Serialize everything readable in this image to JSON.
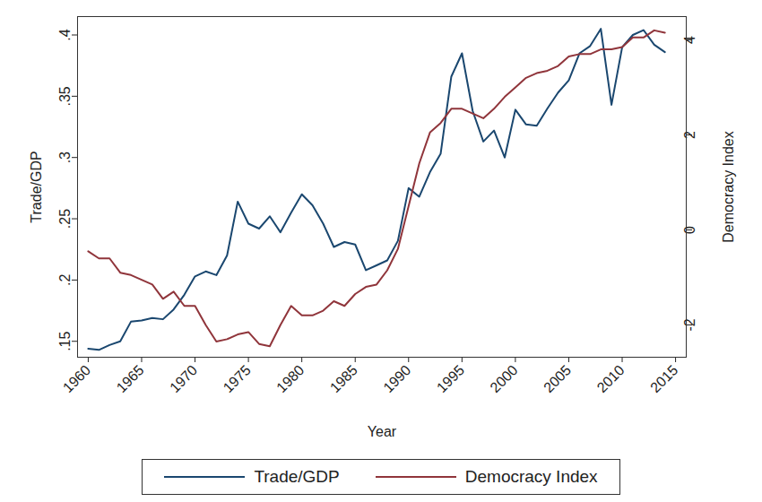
{
  "chart_data": {
    "type": "line",
    "x_label": "Year",
    "y_label": "Trade/GDP",
    "y2_label": "Democracy Index",
    "x": [
      1960,
      1961,
      1962,
      1963,
      1964,
      1965,
      1966,
      1967,
      1968,
      1969,
      1970,
      1971,
      1972,
      1973,
      1974,
      1975,
      1976,
      1977,
      1978,
      1979,
      1980,
      1981,
      1982,
      1983,
      1984,
      1985,
      1986,
      1987,
      1988,
      1989,
      1990,
      1991,
      1992,
      1993,
      1994,
      1995,
      1996,
      1997,
      1998,
      1999,
      2000,
      2001,
      2002,
      2003,
      2004,
      2005,
      2006,
      2007,
      2008,
      2009,
      2010,
      2011,
      2012,
      2013,
      2014
    ],
    "series": [
      {
        "name": "Trade/GDP",
        "color": "#1a476f",
        "axis": "y",
        "values": [
          0.144,
          0.143,
          0.147,
          0.15,
          0.166,
          0.167,
          0.169,
          0.168,
          0.176,
          0.188,
          0.203,
          0.207,
          0.204,
          0.22,
          0.264,
          0.246,
          0.242,
          0.252,
          0.239,
          0.255,
          0.27,
          0.261,
          0.246,
          0.227,
          0.231,
          0.229,
          0.208,
          0.212,
          0.216,
          0.232,
          0.275,
          0.268,
          0.288,
          0.303,
          0.366,
          0.385,
          0.338,
          0.313,
          0.322,
          0.3,
          0.339,
          0.327,
          0.326,
          0.34,
          0.353,
          0.363,
          0.385,
          0.391,
          0.405,
          0.343,
          0.39,
          0.4,
          0.404,
          0.392,
          0.386
        ]
      },
      {
        "name": "Democracy Index",
        "color": "#90353b",
        "axis": "y2",
        "values": [
          -0.45,
          -0.6,
          -0.6,
          -0.9,
          -0.95,
          -1.05,
          -1.15,
          -1.45,
          -1.3,
          -1.6,
          -1.6,
          -2.0,
          -2.35,
          -2.3,
          -2.2,
          -2.15,
          -2.4,
          -2.45,
          -2.0,
          -1.6,
          -1.8,
          -1.8,
          -1.7,
          -1.5,
          -1.6,
          -1.35,
          -1.2,
          -1.15,
          -0.85,
          -0.4,
          0.5,
          1.4,
          2.05,
          2.25,
          2.55,
          2.55,
          2.45,
          2.35,
          2.55,
          2.8,
          3.0,
          3.2,
          3.3,
          3.35,
          3.45,
          3.65,
          3.7,
          3.7,
          3.8,
          3.8,
          3.85,
          4.05,
          4.05,
          4.2,
          4.15
        ]
      }
    ],
    "xlim": [
      1959,
      2016
    ],
    "xticks": [
      1960,
      1965,
      1970,
      1975,
      1980,
      1985,
      1990,
      1995,
      2000,
      2005,
      2010,
      2015
    ],
    "ylim": [
      0.137,
      0.415
    ],
    "yticks": [
      {
        "value": 0.15,
        "label": ".15"
      },
      {
        "value": 0.2,
        "label": ".2"
      },
      {
        "value": 0.25,
        "label": ".25"
      },
      {
        "value": 0.3,
        "label": ".3"
      },
      {
        "value": 0.35,
        "label": ".35"
      },
      {
        "value": 0.4,
        "label": ".4"
      }
    ],
    "y2lim": [
      -2.68,
      4.49
    ],
    "y2ticks": [
      -2,
      0,
      2,
      4
    ],
    "grid": false,
    "legend": "bottom"
  }
}
